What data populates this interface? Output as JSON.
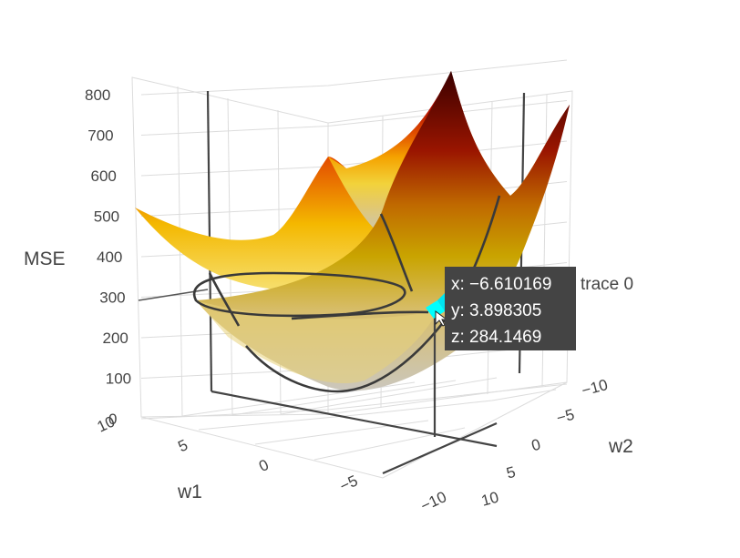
{
  "chart_data": {
    "type": "surface",
    "colorscale": "hot",
    "axes": {
      "x": {
        "title": "w1",
        "range": [
          10,
          -10
        ],
        "ticks": [
          "10",
          "5",
          "0",
          "−5",
          "−10"
        ]
      },
      "y": {
        "title": "w2",
        "range": [
          -10,
          10
        ],
        "ticks": [
          "−10",
          "−5",
          "0",
          "5",
          "10"
        ]
      },
      "z": {
        "title": "MSE",
        "range": [
          0,
          800
        ],
        "ticks": [
          "0",
          "100",
          "200",
          "300",
          "400",
          "500",
          "600",
          "700",
          "800"
        ]
      }
    },
    "grid": true,
    "hover": {
      "x_line": "x: −6.610169",
      "y_line": "y: 3.898305",
      "z_line": "z: 284.1469",
      "trace_name": "trace 0",
      "point": {
        "x": -6.610169,
        "y": 3.898305,
        "z": 284.1469
      }
    }
  }
}
